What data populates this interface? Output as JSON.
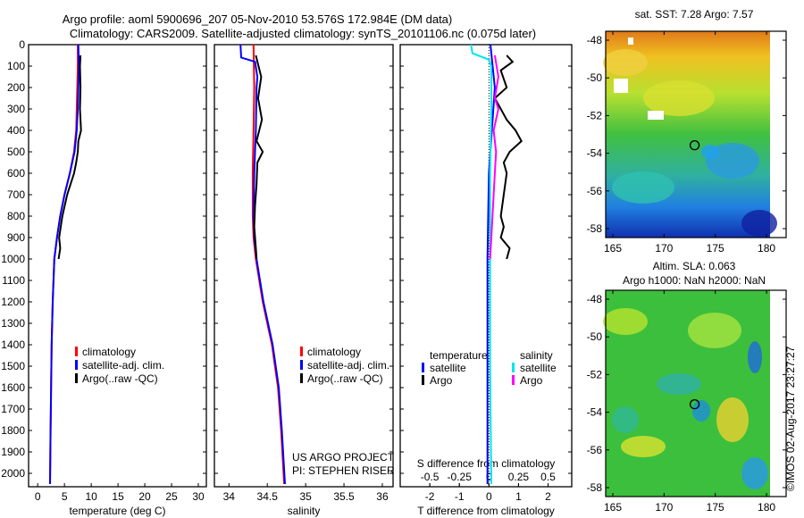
{
  "title_line1": "Argo profile: aoml 5900696_207 05-Nov-2010 53.576S 172.984E (DM data)",
  "title_line2": "Climatology: CARS2009. Satellite-adjusted climatology: synTS_20101106.nc (0.075d later)",
  "credit": "©IMOS 02-Aug-2017 23:27:27",
  "colors": {
    "climatology": "#ff0000",
    "satellite": "#0000ff",
    "argo": "#000000",
    "sal_satellite": "#00e5ee",
    "sal_argo": "#ff00ff"
  },
  "chart_data": [
    {
      "type": "line",
      "name": "temperature",
      "xlabel": "temperature (deg C)",
      "ylabel": "",
      "xlim": [
        -1.7,
        31.5
      ],
      "ylim": [
        2050,
        0
      ],
      "xticks": [
        "0",
        "5",
        "10",
        "15",
        "20",
        "25",
        "30"
      ],
      "yticks": [
        "0",
        "100",
        "200",
        "300",
        "400",
        "500",
        "600",
        "700",
        "800",
        "900",
        "1000",
        "1100",
        "1200",
        "1300",
        "1400",
        "1500",
        "1600",
        "1700",
        "1800",
        "1900",
        "2000"
      ],
      "legend": [
        "climatology",
        "satellite-adj. clim.",
        "Argo(..raw -QC)"
      ],
      "series": [
        {
          "name": "climatology",
          "depth": [
            0,
            100,
            200,
            300,
            400,
            500,
            600,
            700,
            800,
            900,
            1000,
            1200,
            1400,
            1600,
            1800,
            2050
          ],
          "values": [
            7.5,
            7.5,
            7.4,
            7.3,
            7.2,
            6.8,
            6.0,
            5.0,
            4.2,
            3.6,
            3.1,
            2.8,
            2.6,
            2.5,
            2.4,
            2.3
          ]
        },
        {
          "name": "satellite-adj. clim.",
          "depth": [
            0,
            100,
            200,
            300,
            400,
            500,
            600,
            700,
            800,
            900,
            1000,
            1200,
            1400,
            1600,
            1800,
            2050
          ],
          "values": [
            7.6,
            7.7,
            7.6,
            7.5,
            7.3,
            6.9,
            6.0,
            5.0,
            4.2,
            3.6,
            3.1,
            2.8,
            2.6,
            2.5,
            2.4,
            2.3
          ]
        },
        {
          "name": "Argo(..raw -QC)",
          "depth": [
            50,
            100,
            200,
            300,
            400,
            450,
            500,
            550,
            600,
            700,
            800,
            850,
            900,
            950,
            1000
          ],
          "values": [
            8.0,
            7.9,
            8.0,
            7.9,
            8.1,
            7.6,
            7.5,
            7.2,
            6.8,
            5.5,
            4.6,
            4.3,
            4.0,
            4.2,
            3.9
          ]
        }
      ]
    },
    {
      "type": "line",
      "name": "salinity",
      "xlabel": "salinity",
      "xlim": [
        33.81,
        36.14
      ],
      "ylim": [
        2050,
        0
      ],
      "xticks": [
        "34",
        "34.5",
        "35",
        "35.5",
        "36"
      ],
      "legend": [
        "climatology",
        "satellite-adj. clim.",
        "Argo(..raw -QC)"
      ],
      "annotation": [
        "US ARGO PROJECT",
        "PI: STEPHEN RISER"
      ],
      "series": [
        {
          "name": "climatology",
          "depth": [
            0,
            200,
            400,
            600,
            800,
            900,
            1000,
            1200,
            1400,
            1600,
            1800,
            2050
          ],
          "values": [
            34.32,
            34.33,
            34.32,
            34.31,
            34.31,
            34.32,
            34.35,
            34.44,
            34.56,
            34.64,
            34.68,
            34.72
          ]
        },
        {
          "name": "satellite-adj. clim.",
          "depth": [
            0,
            60,
            80,
            150,
            200,
            400,
            600,
            800,
            900,
            1000,
            1200,
            1400,
            1600,
            1800,
            2050
          ],
          "values": [
            34.15,
            34.16,
            34.34,
            34.37,
            34.36,
            34.35,
            34.33,
            34.32,
            34.33,
            34.36,
            34.45,
            34.57,
            34.65,
            34.69,
            34.73
          ]
        },
        {
          "name": "Argo(..raw -QC)",
          "depth": [
            50,
            150,
            250,
            350,
            450,
            500,
            550,
            650,
            750,
            850,
            950,
            1000
          ],
          "values": [
            34.35,
            34.42,
            34.38,
            34.43,
            34.36,
            34.44,
            34.37,
            34.36,
            34.34,
            34.33,
            34.35,
            34.36
          ]
        }
      ]
    },
    {
      "type": "line",
      "name": "difference",
      "xlabel": "T difference from climatology",
      "x2label": "S difference from climatology",
      "xlim": [
        -3.0,
        2.8
      ],
      "ylim": [
        2050,
        0
      ],
      "xticks": [
        "-2",
        "-1",
        "0",
        "1",
        "2"
      ],
      "xtick_values": [
        -2,
        -1,
        0,
        1,
        2
      ],
      "x2ticks": [
        "-0.5",
        "-0.25",
        "0",
        "0.25",
        "0.5"
      ],
      "x2tick_values": [
        -0.5,
        -0.25,
        0,
        0.25,
        0.5
      ],
      "legend_headers": [
        "temperature",
        "salinity"
      ],
      "legend": [
        "satellite",
        "Argo",
        "satellite",
        "Argo"
      ],
      "series": [
        {
          "name": "T satellite",
          "axis": "T",
          "depth": [
            0,
            200,
            600,
            1000,
            1500,
            2050
          ],
          "values": [
            0.05,
            0.2,
            0.0,
            -0.05,
            -0.05,
            -0.05
          ]
        },
        {
          "name": "T Argo",
          "axis": "T",
          "depth": [
            50,
            80,
            120,
            200,
            250,
            300,
            350,
            400,
            450,
            500,
            550,
            600,
            700,
            800,
            850,
            900,
            950,
            1000
          ],
          "values": [
            0.6,
            0.8,
            0.4,
            0.6,
            0.2,
            0.4,
            0.6,
            0.9,
            1.1,
            0.7,
            0.5,
            0.6,
            0.5,
            0.4,
            0.5,
            0.4,
            0.7,
            0.6
          ]
        },
        {
          "name": "S satellite",
          "axis": "S",
          "depth": [
            0,
            40,
            70,
            100,
            300,
            600,
            1000,
            1500,
            2050
          ],
          "values": [
            -0.15,
            -0.14,
            0.0,
            0.02,
            0.02,
            0.01,
            0.01,
            0.01,
            0.02
          ]
        },
        {
          "name": "S Argo",
          "axis": "S",
          "depth": [
            50,
            150,
            250,
            300,
            400,
            500,
            600,
            700,
            800,
            900,
            1000
          ],
          "values": [
            0.05,
            0.08,
            0.05,
            0.08,
            0.04,
            0.06,
            0.05,
            0.04,
            0.03,
            0.02,
            0.01
          ]
        }
      ]
    }
  ],
  "maps": [
    {
      "title": [
        "sat. SST: 7.28 Argo: 7.57"
      ],
      "lon_ticks": [
        "165",
        "170",
        "175",
        "180"
      ],
      "lat_ticks": [
        "-48",
        "-50",
        "-52",
        "-54",
        "-56",
        "-58"
      ],
      "marker": {
        "lon": 172.984,
        "lat": -53.576
      }
    },
    {
      "title": [
        "Altim. SLA: 0.063",
        "Argo h1000: NaN h2000: NaN"
      ],
      "lon_ticks": [
        "165",
        "170",
        "175",
        "180"
      ],
      "lat_ticks": [
        "-48",
        "-50",
        "-52",
        "-54",
        "-56",
        "-58"
      ],
      "marker": {
        "lon": 172.984,
        "lat": -53.576
      }
    }
  ]
}
